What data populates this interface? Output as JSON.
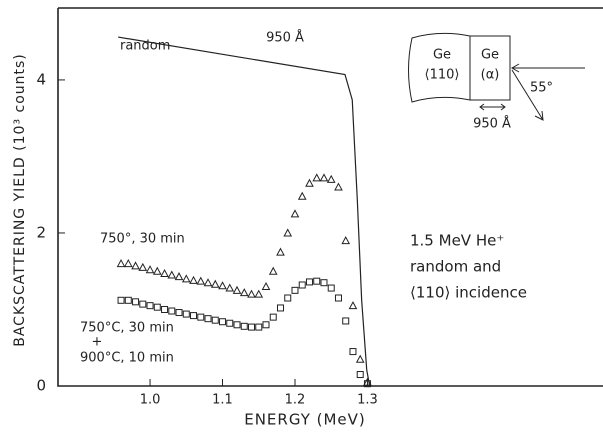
{
  "chart_data": {
    "type": "scatter",
    "xlabel": "ENERGY (MeV)",
    "ylabel": "BACKSCATTERING YIELD (10³ counts)",
    "xlim": [
      0.873,
      1.625
    ],
    "ylim": [
      0,
      4.94
    ],
    "xticks": [
      {
        "value": 1.0,
        "label": "1.0"
      },
      1.1,
      1.2,
      1.3
    ],
    "yticks": [
      0,
      2,
      4
    ],
    "series": [
      {
        "name": "random",
        "style": "line",
        "color": "#222222",
        "x": [
          0.956,
          1.269,
          1.279,
          1.286,
          1.292,
          1.299,
          1.303
        ],
        "values": [
          4.56,
          4.07,
          3.74,
          2.43,
          1.12,
          0.21,
          0
        ]
      },
      {
        "name": "750°, 30 min",
        "style": "triangle",
        "color": "#222222",
        "x": [
          0.96,
          0.97,
          0.98,
          0.99,
          1.0,
          1.01,
          1.02,
          1.03,
          1.04,
          1.05,
          1.06,
          1.07,
          1.08,
          1.09,
          1.1,
          1.11,
          1.12,
          1.13,
          1.14,
          1.15,
          1.16,
          1.17,
          1.18,
          1.19,
          1.2,
          1.21,
          1.22,
          1.23,
          1.24,
          1.25,
          1.26,
          1.27,
          1.28,
          1.29,
          1.3
        ],
        "values": [
          1.6,
          1.6,
          1.57,
          1.55,
          1.52,
          1.5,
          1.47,
          1.45,
          1.43,
          1.4,
          1.38,
          1.37,
          1.35,
          1.33,
          1.31,
          1.28,
          1.25,
          1.22,
          1.2,
          1.2,
          1.3,
          1.5,
          1.75,
          2.0,
          2.25,
          2.48,
          2.65,
          2.72,
          2.72,
          2.7,
          2.6,
          1.9,
          1.05,
          0.35,
          0.05
        ]
      },
      {
        "name": "750°C, 30 min",
        "style": "square",
        "color": "#222222",
        "x": [
          0.96,
          0.97,
          0.98,
          0.99,
          1.0,
          1.01,
          1.02,
          1.03,
          1.04,
          1.05,
          1.06,
          1.07,
          1.08,
          1.09,
          1.1,
          1.11,
          1.12,
          1.13,
          1.14,
          1.15,
          1.16,
          1.17,
          1.18,
          1.19,
          1.2,
          1.21,
          1.22,
          1.23,
          1.24,
          1.25,
          1.26,
          1.27,
          1.28,
          1.29,
          1.3
        ],
        "values": [
          1.12,
          1.12,
          1.1,
          1.07,
          1.05,
          1.03,
          1.0,
          0.98,
          0.96,
          0.94,
          0.92,
          0.9,
          0.88,
          0.86,
          0.84,
          0.82,
          0.8,
          0.78,
          0.77,
          0.77,
          0.8,
          0.9,
          1.02,
          1.15,
          1.25,
          1.32,
          1.36,
          1.37,
          1.35,
          1.28,
          1.15,
          0.85,
          0.45,
          0.15,
          0.03
        ]
      }
    ],
    "annotations": [
      "950 Å",
      "+",
      "900°C, 10 min",
      "1.5 MeV He⁺",
      "random and",
      "⟨110⟩ incidence"
    ],
    "inset": {
      "left_label": "Ge",
      "left_sub": "⟨110⟩",
      "right_label": "Ge",
      "right_sub": "(α)",
      "angle": "55°",
      "thickness": "950 Å"
    }
  }
}
